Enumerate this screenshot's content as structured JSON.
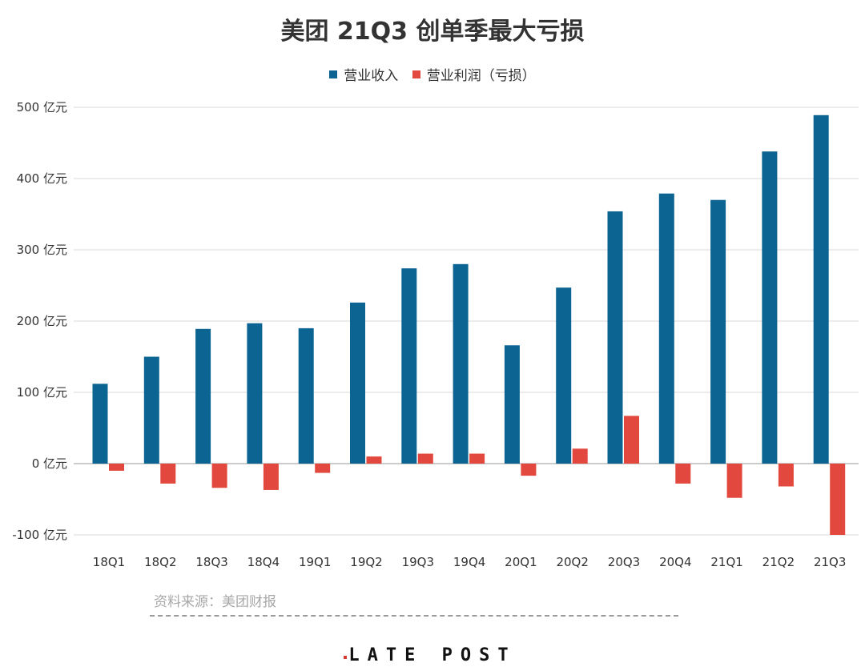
{
  "chart_data": {
    "type": "bar",
    "title": "美团 21Q3 创单季最大亏损",
    "categories": [
      "18Q1",
      "18Q2",
      "18Q3",
      "18Q4",
      "19Q1",
      "19Q2",
      "19Q3",
      "19Q4",
      "20Q1",
      "20Q2",
      "20Q3",
      "20Q4",
      "21Q1",
      "21Q2",
      "21Q3"
    ],
    "series": [
      {
        "name": "营业收入",
        "color": "#0b6491",
        "values": [
          112,
          150,
          189,
          197,
          190,
          226,
          274,
          280,
          166,
          247,
          354,
          379,
          370,
          438,
          489
        ]
      },
      {
        "name": "营业利润（亏损）",
        "color": "#e2483d",
        "values": [
          -10,
          -28,
          -34,
          -37,
          -13,
          10,
          14,
          14,
          -17,
          21,
          67,
          -28,
          -48,
          -32,
          -100
        ]
      }
    ],
    "ylim": [
      -100,
      500
    ],
    "yticks": [
      "-100 亿元",
      "0 亿元",
      "100 亿元",
      "200 亿元",
      "300 亿元",
      "400 亿元",
      "500 亿元"
    ],
    "ytick_values": [
      -100,
      0,
      100,
      200,
      300,
      400,
      500
    ],
    "grid": true,
    "legend_position": "top-center"
  },
  "source_text": "资料来源：美团财报",
  "brand": "LATE POST"
}
